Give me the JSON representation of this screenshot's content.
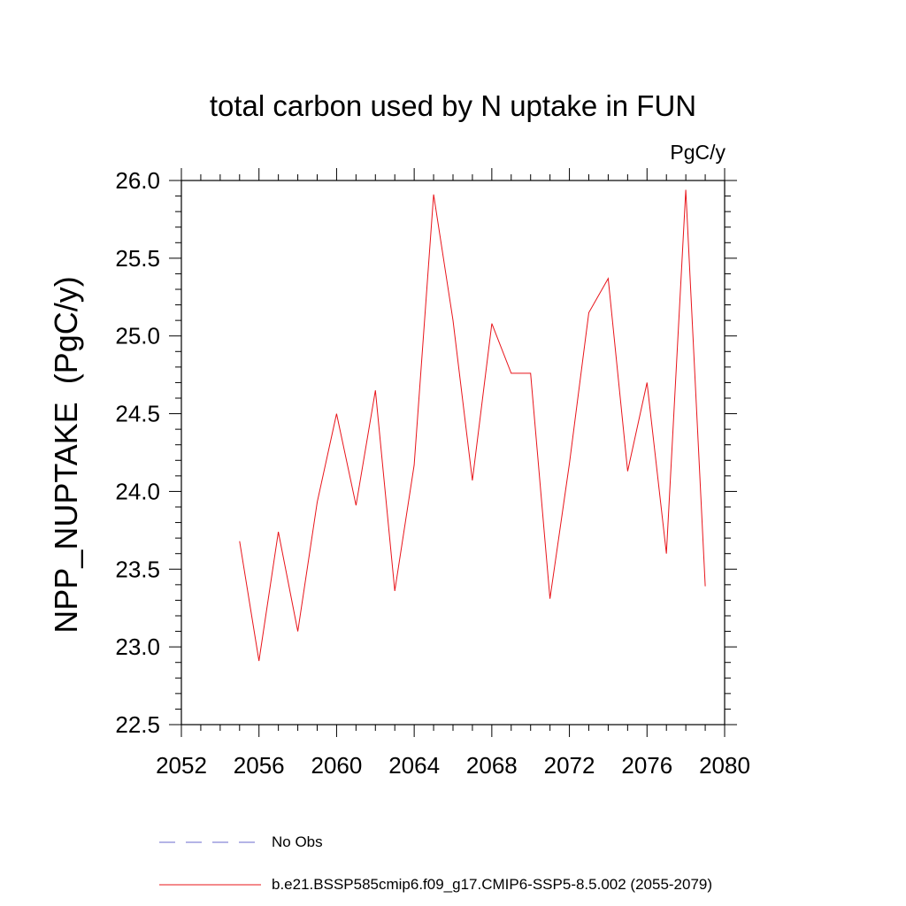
{
  "chart_data": {
    "type": "line",
    "title": "total carbon used by N uptake in FUN",
    "units_label": "PgC/y",
    "ylabel": "NPP_NUPTAKE  (PgC/y)",
    "xlabel": "",
    "xlim": [
      2052,
      2080
    ],
    "ylim": [
      22.5,
      26.0
    ],
    "x_ticks": [
      2052,
      2056,
      2060,
      2064,
      2068,
      2072,
      2076,
      2080
    ],
    "x_tick_labels": [
      "2052",
      "2056",
      "2060",
      "2064",
      "2068",
      "2072",
      "2076",
      "2080"
    ],
    "y_ticks": [
      22.5,
      23.0,
      23.5,
      24.0,
      24.5,
      25.0,
      25.5,
      26.0
    ],
    "y_tick_labels": [
      "22.5",
      "23.0",
      "23.5",
      "24.0",
      "24.5",
      "25.0",
      "25.5",
      "26.0"
    ],
    "grid": false,
    "legend_position": "bottom",
    "series": [
      {
        "name": "b.e21.BSSP585cmip6.f09_g17.CMIP6-SSP5-8.5.002 (2055-2079)",
        "color": "#e8141a",
        "style": "solid",
        "x": [
          2055,
          2056,
          2057,
          2058,
          2059,
          2060,
          2061,
          2062,
          2063,
          2064,
          2065,
          2066,
          2067,
          2068,
          2069,
          2070,
          2071,
          2072,
          2073,
          2074,
          2075,
          2076,
          2077,
          2078,
          2079
        ],
        "y": [
          23.68,
          22.91,
          23.74,
          23.1,
          23.93,
          24.5,
          23.91,
          24.65,
          23.36,
          24.17,
          25.91,
          25.1,
          24.07,
          25.08,
          24.76,
          24.76,
          23.31,
          24.18,
          25.15,
          25.37,
          24.13,
          24.7,
          23.6,
          25.94,
          23.39
        ]
      },
      {
        "name": "No Obs",
        "color": "#6a6acd",
        "style": "dashed",
        "x": [],
        "y": []
      }
    ]
  }
}
